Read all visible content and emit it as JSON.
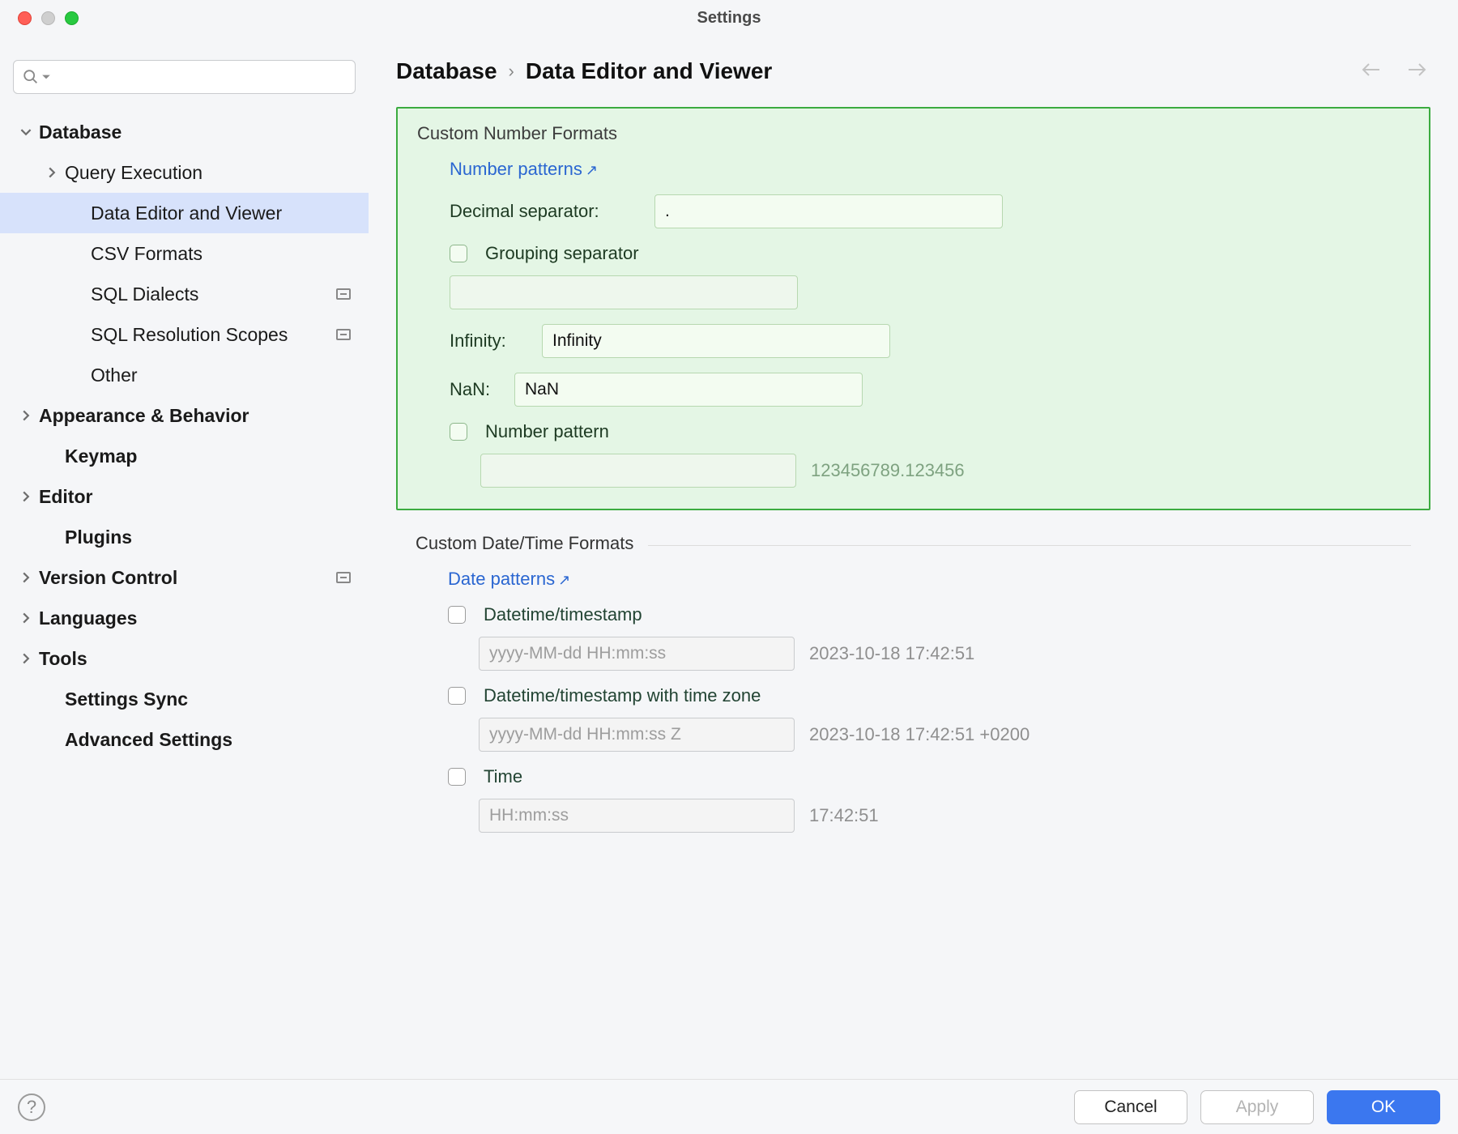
{
  "window": {
    "title": "Settings"
  },
  "sidebar": {
    "search_placeholder": "",
    "items": [
      {
        "label": "Database",
        "bold": true,
        "arrow": "down",
        "depth": 0
      },
      {
        "label": "Query Execution",
        "bold": false,
        "arrow": "right",
        "depth": 1
      },
      {
        "label": "Data Editor and Viewer",
        "bold": false,
        "arrow": "none",
        "depth": 2,
        "selected": true
      },
      {
        "label": "CSV Formats",
        "bold": false,
        "arrow": "none",
        "depth": 2
      },
      {
        "label": "SQL Dialects",
        "bold": false,
        "arrow": "none",
        "depth": 2,
        "badge": true
      },
      {
        "label": "SQL Resolution Scopes",
        "bold": false,
        "arrow": "none",
        "depth": 2,
        "badge": true
      },
      {
        "label": "Other",
        "bold": false,
        "arrow": "none",
        "depth": 2
      },
      {
        "label": "Appearance & Behavior",
        "bold": true,
        "arrow": "right",
        "depth": 0
      },
      {
        "label": "Keymap",
        "bold": true,
        "arrow": "none",
        "depth": 1
      },
      {
        "label": "Editor",
        "bold": true,
        "arrow": "right",
        "depth": 0
      },
      {
        "label": "Plugins",
        "bold": true,
        "arrow": "none",
        "depth": 1
      },
      {
        "label": "Version Control",
        "bold": true,
        "arrow": "right",
        "depth": 0,
        "badge": true
      },
      {
        "label": "Languages",
        "bold": true,
        "arrow": "right",
        "depth": 0
      },
      {
        "label": "Tools",
        "bold": true,
        "arrow": "right",
        "depth": 0
      },
      {
        "label": "Settings Sync",
        "bold": true,
        "arrow": "none",
        "depth": 1
      },
      {
        "label": "Advanced Settings",
        "bold": true,
        "arrow": "none",
        "depth": 1
      }
    ]
  },
  "breadcrumbs": {
    "root": "Database",
    "leaf": "Data Editor and Viewer"
  },
  "number_section": {
    "title": "Custom Number Formats",
    "patterns_link": "Number patterns",
    "decimal_label": "Decimal separator:",
    "decimal_value": ".",
    "grouping_label": "Grouping separator",
    "grouping_value": "",
    "infinity_label": "Infinity:",
    "infinity_value": "Infinity",
    "nan_label": "NaN:",
    "nan_value": "NaN",
    "pattern_label": "Number pattern",
    "pattern_value": "",
    "pattern_hint": "123456789.123456",
    "colors": {
      "background": "#e4f6e5",
      "border": "#3bab40"
    }
  },
  "date_section": {
    "title": "Custom Date/Time Formats",
    "patterns_link": "Date patterns",
    "rows": [
      {
        "label": "Datetime/timestamp",
        "placeholder": "yyyy-MM-dd HH:mm:ss",
        "hint": "2023-10-18 17:42:51"
      },
      {
        "label": "Datetime/timestamp with time zone",
        "placeholder": "yyyy-MM-dd HH:mm:ss Z",
        "hint": "2023-10-18 17:42:51 +0200"
      },
      {
        "label": "Time",
        "placeholder": "HH:mm:ss",
        "hint": "17:42:51"
      }
    ]
  },
  "footer": {
    "cancel": "Cancel",
    "apply": "Apply",
    "ok": "OK"
  }
}
